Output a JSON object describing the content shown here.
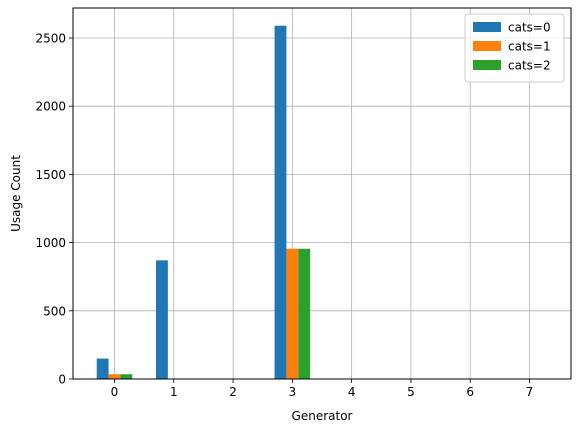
{
  "chart_data": {
    "type": "bar",
    "xlabel": "Generator",
    "ylabel": "Usage Count",
    "categories": [
      "0",
      "1",
      "2",
      "3",
      "4",
      "5",
      "6",
      "7"
    ],
    "x_ticks": [
      "0",
      "1",
      "2",
      "3",
      "4",
      "5",
      "6",
      "7"
    ],
    "y_ticks": [
      "0",
      "500",
      "1000",
      "1500",
      "2000",
      "2500"
    ],
    "ylim": [
      0,
      2720
    ],
    "xlim": [
      -0.7,
      7.7
    ],
    "grid": true,
    "legend_position": "top-right",
    "series": [
      {
        "name": "cats=0",
        "color": "#1f77b4",
        "values": [
          150,
          870,
          0,
          2590,
          0,
          0,
          0,
          0
        ]
      },
      {
        "name": "cats=1",
        "color": "#ff7f0e",
        "values": [
          35,
          0,
          0,
          955,
          0,
          0,
          0,
          0
        ]
      },
      {
        "name": "cats=2",
        "color": "#2ca02c",
        "values": [
          35,
          0,
          0,
          955,
          0,
          0,
          0,
          0
        ]
      }
    ]
  }
}
